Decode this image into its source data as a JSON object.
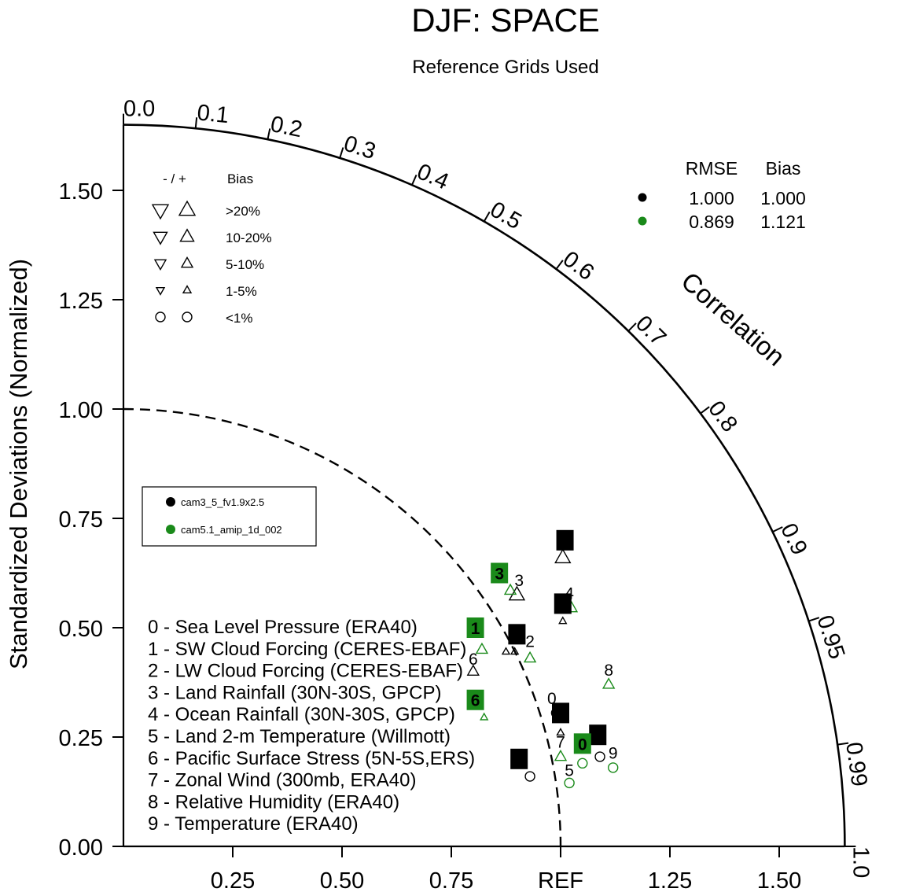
{
  "chart_data": {
    "type": "scatter",
    "subtype": "taylor-diagram",
    "title": "DJF: SPACE",
    "subtitle": "Reference Grids Used",
    "ylabel": "Standardized Deviations (Normalized)",
    "arc_label": "Correlation",
    "ylim": [
      0,
      1.65
    ],
    "y_ticks": [
      {
        "v": 0.0,
        "label": "0.00"
      },
      {
        "v": 0.25,
        "label": "0.25"
      },
      {
        "v": 0.5,
        "label": "0.50"
      },
      {
        "v": 0.75,
        "label": "0.75"
      },
      {
        "v": 1.0,
        "label": "1.00"
      },
      {
        "v": 1.25,
        "label": "1.25"
      },
      {
        "v": 1.5,
        "label": "1.50"
      }
    ],
    "x_ticks": [
      {
        "v": 0.25,
        "label": "0.25"
      },
      {
        "v": 0.5,
        "label": "0.50"
      },
      {
        "v": 0.75,
        "label": "0.75"
      },
      {
        "v": 1.0,
        "label": "REF"
      },
      {
        "v": 1.25,
        "label": "1.25"
      },
      {
        "v": 1.5,
        "label": "1.50"
      }
    ],
    "corr_ticks": [
      {
        "v": 0.0,
        "label": "0.0"
      },
      {
        "v": 0.1,
        "label": "0.1"
      },
      {
        "v": 0.2,
        "label": "0.2"
      },
      {
        "v": 0.3,
        "label": "0.3"
      },
      {
        "v": 0.4,
        "label": "0.4"
      },
      {
        "v": 0.5,
        "label": "0.5"
      },
      {
        "v": 0.6,
        "label": "0.6"
      },
      {
        "v": 0.7,
        "label": "0.7"
      },
      {
        "v": 0.8,
        "label": "0.8"
      },
      {
        "v": 0.9,
        "label": "0.9"
      },
      {
        "v": 0.95,
        "label": "0.95"
      },
      {
        "v": 0.99,
        "label": "0.99"
      },
      {
        "v": 1.0,
        "label": "1.0"
      }
    ],
    "grid": false,
    "reference_arc_sd": 1.0,
    "series": [
      {
        "name": "cam3_5_fv1.9x2.5",
        "color": "#000000",
        "rmse": "1.000",
        "bias": "1.000",
        "points": [
          {
            "label": "0",
            "x": 0.99,
            "y": 0.305,
            "marker": "circle"
          },
          {
            "label": "1",
            "x": 0.875,
            "y": 0.445,
            "marker": "up-triangle-small"
          },
          {
            "label": "2",
            "x": 1.005,
            "y": 0.515,
            "marker": "up-triangle-small"
          },
          {
            "label": "3",
            "x": 0.9,
            "y": 0.575,
            "marker": "up-triangle-large"
          },
          {
            "label": "4",
            "x": 1.005,
            "y": 0.66,
            "marker": "up-triangle-large"
          },
          {
            "label": "5",
            "x": 0.93,
            "y": 0.16,
            "marker": "circle"
          },
          {
            "label": "6",
            "x": 0.8,
            "y": 0.4,
            "marker": "up-triangle-medium"
          },
          {
            "label": "7",
            "x": 1.0,
            "y": 0.26,
            "marker": "up-triangle-small"
          },
          {
            "label": "8",
            "x": 0.895,
            "y": 0.445,
            "marker": "up-triangle-small"
          },
          {
            "label": "9",
            "x": 1.09,
            "y": 0.205,
            "marker": "circle"
          }
        ]
      },
      {
        "name": "cam5.1_amip_1d_002",
        "color": "#1a8a1a",
        "rmse": "0.869",
        "bias": "1.121",
        "points": [
          {
            "label": "0",
            "x": 1.05,
            "y": 0.19,
            "marker": "circle"
          },
          {
            "label": "1",
            "x": 0.82,
            "y": 0.45,
            "marker": "up-triangle-medium"
          },
          {
            "label": "2",
            "x": 0.93,
            "y": 0.43,
            "marker": "up-triangle-medium"
          },
          {
            "label": "3",
            "x": 0.885,
            "y": 0.585,
            "marker": "up-triangle-medium"
          },
          {
            "label": "4",
            "x": 1.025,
            "y": 0.545,
            "marker": "up-triangle-medium"
          },
          {
            "label": "5",
            "x": 1.02,
            "y": 0.145,
            "marker": "circle"
          },
          {
            "label": "6",
            "x": 0.825,
            "y": 0.295,
            "marker": "up-triangle-small"
          },
          {
            "label": "7",
            "x": 1.0,
            "y": 0.205,
            "marker": "up-triangle-medium"
          },
          {
            "label": "8",
            "x": 1.11,
            "y": 0.37,
            "marker": "up-triangle-medium"
          },
          {
            "label": "9",
            "x": 1.12,
            "y": 0.18,
            "marker": "circle"
          }
        ]
      }
    ],
    "boxed_labels": [
      {
        "series": 0,
        "label": "4",
        "x": 1.01,
        "y": 0.7
      },
      {
        "series": 0,
        "label": "2",
        "x": 1.005,
        "y": 0.555
      },
      {
        "series": 0,
        "label": "8",
        "x": 0.9,
        "y": 0.485
      },
      {
        "series": 0,
        "label": "7",
        "x": 1.0,
        "y": 0.305
      },
      {
        "series": 0,
        "label": "9",
        "x": 1.085,
        "y": 0.255
      },
      {
        "series": 0,
        "label": "5",
        "x": 0.905,
        "y": 0.2
      },
      {
        "series": 1,
        "label": "3",
        "x": 0.86,
        "y": 0.625
      },
      {
        "series": 1,
        "label": "1",
        "x": 0.805,
        "y": 0.5
      },
      {
        "series": 1,
        "label": "6",
        "x": 0.805,
        "y": 0.335
      },
      {
        "series": 1,
        "label": "0",
        "x": 1.05,
        "y": 0.235
      }
    ],
    "plain_labels": [
      {
        "series": 0,
        "label": "3",
        "x": 0.905,
        "y": 0.61
      },
      {
        "series": 0,
        "label": "0",
        "x": 0.98,
        "y": 0.34
      },
      {
        "series": 0,
        "label": "6",
        "x": 0.8,
        "y": 0.43
      },
      {
        "series": 1,
        "label": "4",
        "x": 1.02,
        "y": 0.58
      },
      {
        "series": 1,
        "label": "2",
        "x": 0.93,
        "y": 0.47
      },
      {
        "series": 1,
        "label": "8",
        "x": 1.11,
        "y": 0.405
      },
      {
        "series": 1,
        "label": "7",
        "x": 1.0,
        "y": 0.24
      },
      {
        "series": 1,
        "label": "5",
        "x": 1.02,
        "y": 0.175
      },
      {
        "series": 1,
        "label": "9",
        "x": 1.12,
        "y": 0.215
      }
    ],
    "variables": [
      "0 - Sea Level Pressure (ERA40)",
      "1 - SW Cloud Forcing (CERES-EBAF)",
      "2 - LW Cloud Forcing (CERES-EBAF)",
      "3 - Land Rainfall (30N-30S, GPCP)",
      "4 - Ocean Rainfall (30N-30S, GPCP)",
      "5 - Land 2-m Temperature (Willmott)",
      "6 - Pacific Surface Stress (5N-5S,ERS)",
      "7 - Zonal Wind (300mb, ERA40)",
      "8 - Relative Humidity (ERA40)",
      "9 - Temperature (ERA40)"
    ],
    "bias_legend": {
      "header_sign": "- / +",
      "header_label": "Bias",
      "rows": [
        {
          "label": ">20%",
          "size": "xlarge",
          "shape": "triangle"
        },
        {
          "label": "10-20%",
          "size": "large",
          "shape": "triangle"
        },
        {
          "label": "5-10%",
          "size": "medium",
          "shape": "triangle"
        },
        {
          "label": "1-5%",
          "size": "small",
          "shape": "triangle"
        },
        {
          "label": "<1%",
          "size": "medium",
          "shape": "circle"
        }
      ]
    },
    "stats_legend": {
      "rmse_header": "RMSE",
      "bias_header": "Bias"
    }
  }
}
